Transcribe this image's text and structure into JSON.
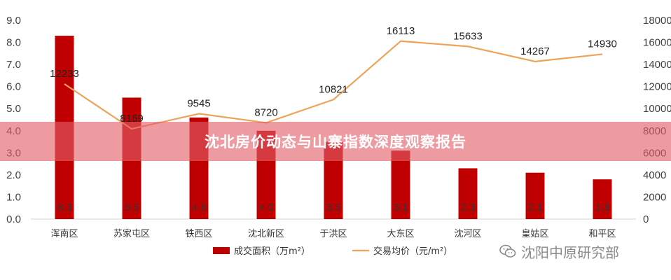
{
  "banner": {
    "title": "沈北房价动态与山寨指数深度观察报告"
  },
  "watermark": {
    "text": "沈阳中原研究部",
    "icon": "wechat-icon"
  },
  "colors": {
    "bar": "#C00000",
    "line": "#EDA35A",
    "banner": "#E25E68"
  },
  "chart_data": {
    "type": "bar+line",
    "categories": [
      "浑南区",
      "苏家屯区",
      "铁西区",
      "沈北新区",
      "于洪区",
      "大东区",
      "沈河区",
      "皇姑区",
      "和平区"
    ],
    "series": [
      {
        "name": "成交面积（万m²）",
        "type": "bar",
        "axis": "left",
        "values": [
          8.3,
          5.5,
          4.6,
          4.0,
          3.5,
          3.1,
          2.3,
          2.1,
          1.8
        ],
        "labels": [
          "8.3",
          "5.5",
          "4.6",
          "4.0",
          "3.5",
          "3.1",
          "2.3",
          "2.1",
          "1.8"
        ]
      },
      {
        "name": "交易均价（元/m²）",
        "type": "line",
        "axis": "right",
        "values": [
          12233,
          8169,
          9545,
          8720,
          10821,
          16113,
          15633,
          14267,
          14930
        ],
        "labels": [
          "12233",
          "8169",
          "9545",
          "8720",
          "10821",
          "16113",
          "15633",
          "14267",
          "14930"
        ]
      }
    ],
    "y_left": {
      "min": 0,
      "max": 9,
      "ticks": [
        "0.0",
        "1.0",
        "2.0",
        "3.0",
        "4.0",
        "5.0",
        "6.0",
        "7.0",
        "8.0",
        "9.0"
      ]
    },
    "y_right": {
      "min": 0,
      "max": 18000,
      "ticks": [
        "0",
        "2000",
        "4000",
        "6000",
        "8000",
        "10000",
        "12000",
        "14000",
        "16000",
        "18000"
      ]
    },
    "grid": false,
    "legend": "bottom"
  }
}
